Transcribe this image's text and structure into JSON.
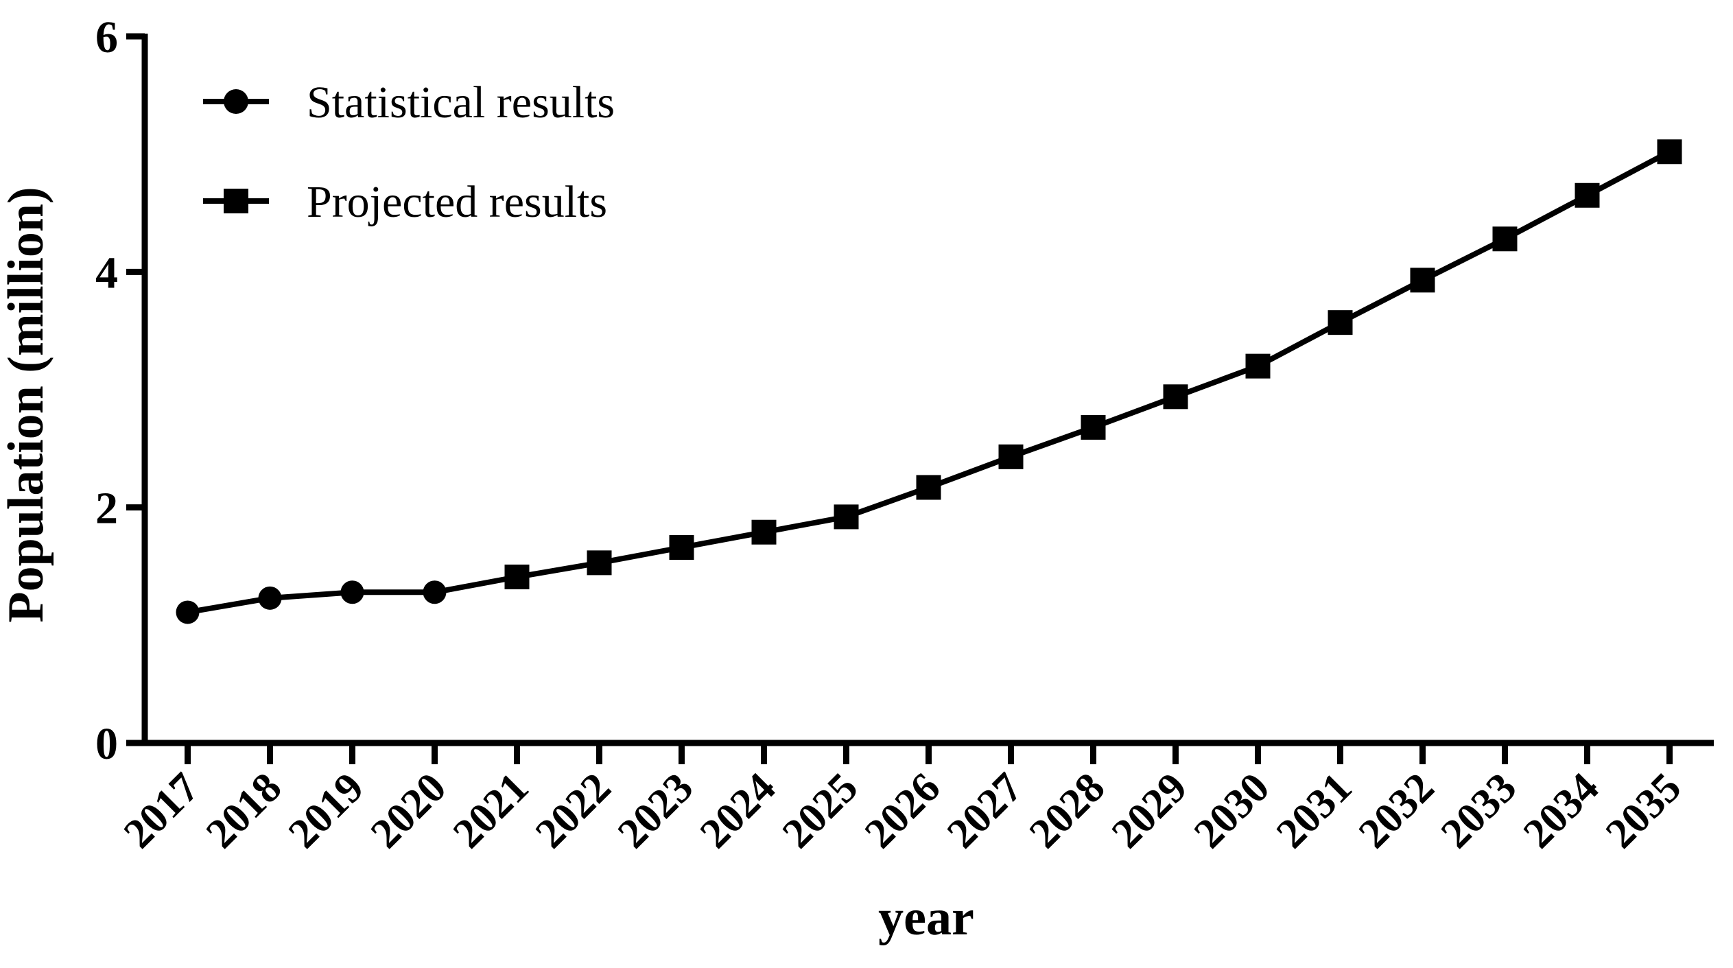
{
  "page": {
    "background_color": "#ffffff",
    "foreground_color": "#000000"
  },
  "chart_data": {
    "type": "line",
    "title": "",
    "xlabel": "year",
    "ylabel": "Population (million)",
    "x_categories": [
      "2017",
      "2018",
      "2019",
      "2020",
      "2021",
      "2022",
      "2023",
      "2024",
      "2025",
      "2026",
      "2027",
      "2028",
      "2029",
      "2030",
      "2031",
      "2032",
      "2033",
      "2034",
      "2035"
    ],
    "ylim": [
      0,
      6
    ],
    "yticks": [
      "0",
      "2",
      "4",
      "6"
    ],
    "grid": false,
    "legend_position": "top-left-inside",
    "line_color": "#000000",
    "marker_color": "#000000",
    "background_color": "#ffffff",
    "continuous_line": true,
    "series": [
      {
        "name": "Statistical results",
        "marker": "circle",
        "years": [
          "2017",
          "2018",
          "2019",
          "2020"
        ],
        "values": [
          1.11,
          1.23,
          1.28,
          1.28
        ]
      },
      {
        "name": "Projected results",
        "marker": "square",
        "years": [
          "2021",
          "2022",
          "2023",
          "2024",
          "2025",
          "2026",
          "2027",
          "2028",
          "2029",
          "2030",
          "2031",
          "2032",
          "2033",
          "2034",
          "2035"
        ],
        "values": [
          1.41,
          1.53,
          1.66,
          1.79,
          1.92,
          2.17,
          2.43,
          2.68,
          2.94,
          3.2,
          3.57,
          3.93,
          4.28,
          4.65,
          5.02
        ]
      }
    ]
  }
}
